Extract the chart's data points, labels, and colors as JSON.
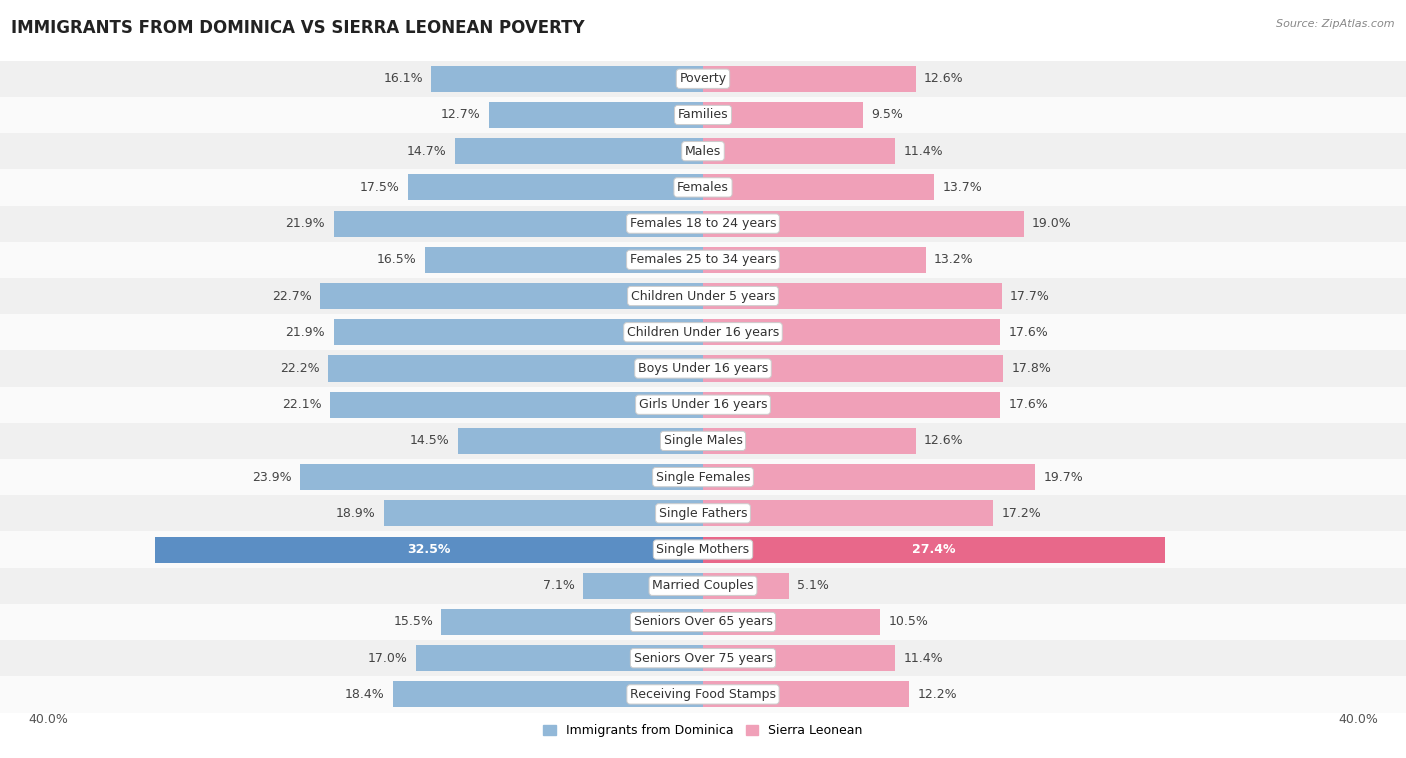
{
  "title": "IMMIGRANTS FROM DOMINICA VS SIERRA LEONEAN POVERTY",
  "source": "Source: ZipAtlas.com",
  "categories": [
    "Poverty",
    "Families",
    "Males",
    "Females",
    "Females 18 to 24 years",
    "Females 25 to 34 years",
    "Children Under 5 years",
    "Children Under 16 years",
    "Boys Under 16 years",
    "Girls Under 16 years",
    "Single Males",
    "Single Females",
    "Single Fathers",
    "Single Mothers",
    "Married Couples",
    "Seniors Over 65 years",
    "Seniors Over 75 years",
    "Receiving Food Stamps"
  ],
  "left_values": [
    16.1,
    12.7,
    14.7,
    17.5,
    21.9,
    16.5,
    22.7,
    21.9,
    22.2,
    22.1,
    14.5,
    23.9,
    18.9,
    32.5,
    7.1,
    15.5,
    17.0,
    18.4
  ],
  "right_values": [
    12.6,
    9.5,
    11.4,
    13.7,
    19.0,
    13.2,
    17.7,
    17.6,
    17.8,
    17.6,
    12.6,
    19.7,
    17.2,
    27.4,
    5.1,
    10.5,
    11.4,
    12.2
  ],
  "left_color": "#92b8d8",
  "right_color": "#f0a0b8",
  "highlight_left_color": "#5b8ec4",
  "highlight_right_color": "#e8688a",
  "highlight_rows": [
    13
  ],
  "axis_max": 40.0,
  "bar_height": 0.72,
  "row_bg_odd": "#f0f0f0",
  "row_bg_even": "#fafafa",
  "label_fontsize": 9,
  "value_fontsize": 9,
  "title_fontsize": 12,
  "legend_labels": [
    "Immigrants from Dominica",
    "Sierra Leonean"
  ]
}
